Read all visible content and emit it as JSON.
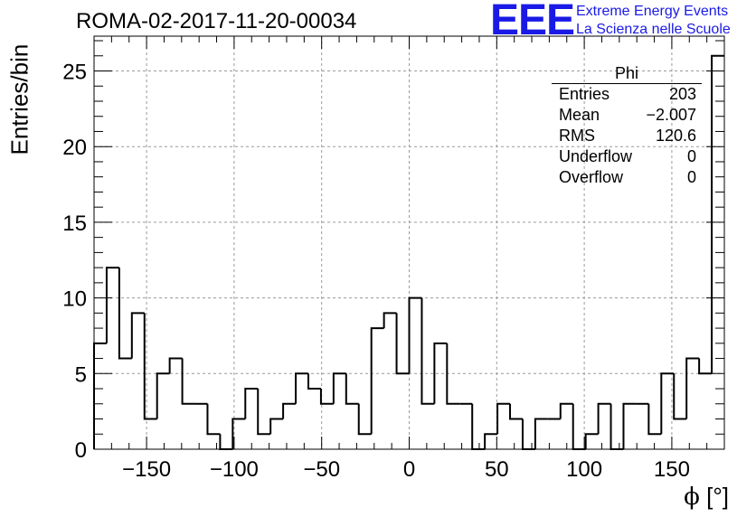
{
  "header": {
    "run_title": "ROMA-02-2017-11-20-00034",
    "logo_text": "EEE",
    "logo_line1": "Extreme Energy Events",
    "logo_line2": "La Scienza nelle Scuole",
    "brand_color": "#1a1ae6"
  },
  "stats_box": {
    "title": "Phi",
    "rows": [
      {
        "label": "Entries",
        "value": "203"
      },
      {
        "label": "Mean",
        "value": "−2.007"
      },
      {
        "label": "RMS",
        "value": "120.6"
      },
      {
        "label": "Underflow",
        "value": "0"
      },
      {
        "label": "Overflow",
        "value": "0"
      }
    ]
  },
  "chart_data": {
    "type": "histogram",
    "xlabel_symbol": "ϕ",
    "xlabel_unit": "[°]",
    "ylabel": "Entries/bin",
    "xlim": [
      -180,
      180
    ],
    "ylim": [
      0,
      27.3
    ],
    "bin_width": 7.2,
    "bin_edges_start": -180,
    "values": [
      7,
      12,
      6,
      9,
      2,
      5,
      6,
      3,
      3,
      1,
      0,
      2,
      4,
      1,
      2,
      3,
      5,
      4,
      3,
      5,
      3,
      1,
      8,
      9,
      5,
      10,
      3,
      7,
      3,
      3,
      0,
      1,
      3,
      2,
      0,
      2,
      2,
      3,
      0,
      1,
      3,
      0,
      3,
      3,
      1,
      5,
      2,
      6,
      5,
      26
    ],
    "x_ticks": [
      -150,
      -100,
      -50,
      0,
      50,
      100,
      150
    ],
    "y_ticks": [
      0,
      5,
      10,
      15,
      20,
      25
    ],
    "grid": true,
    "line_color": "#000000"
  }
}
